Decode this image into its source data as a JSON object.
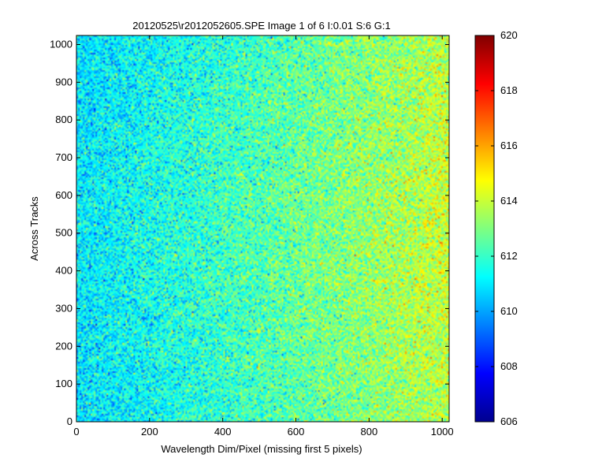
{
  "chart_data": {
    "type": "heatmap",
    "title": "20120525\\r2012052605.SPE  Image 1 of 6  I:0.01  S:6  G:1",
    "xlabel": "Wavelength Dim/Pixel (missing first 5 pixels)",
    "ylabel": "Across Tracks",
    "xlim": [
      0,
      1019
    ],
    "ylim": [
      0,
      1024
    ],
    "xticks": [
      0,
      200,
      400,
      600,
      800,
      1000
    ],
    "yticks": [
      0,
      100,
      200,
      300,
      400,
      500,
      600,
      700,
      800,
      900,
      1000
    ],
    "colorbar": {
      "colormap": "jet",
      "limits": [
        606,
        620
      ],
      "ticks": [
        606,
        608,
        610,
        612,
        614,
        616,
        618,
        620
      ]
    },
    "value_trend": {
      "description": "noisy field increasing left to right",
      "left_edge_mean": 610.8,
      "right_edge_mean": 613.8,
      "noise_std": 1.0
    },
    "grid": false,
    "legend": "none"
  }
}
